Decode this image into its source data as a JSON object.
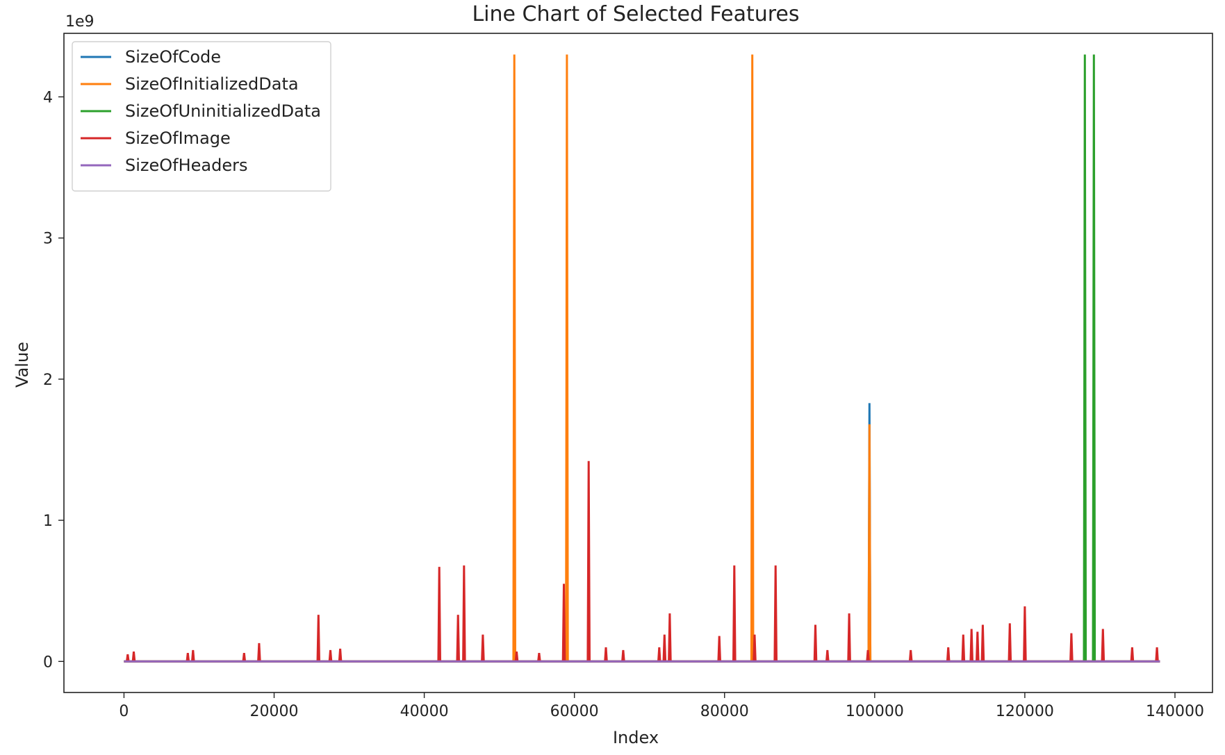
{
  "chart_data": {
    "type": "line",
    "title": "Line Chart of Selected Features",
    "xlabel": "Index",
    "ylabel": "Value",
    "y_scale_label": "1e9",
    "xlim": [
      -8000,
      145000
    ],
    "ylim": [
      -0.22,
      4.45
    ],
    "xticks": [
      0,
      20000,
      40000,
      60000,
      80000,
      100000,
      120000,
      140000
    ],
    "xtick_labels": [
      "0",
      "20000",
      "40000",
      "60000",
      "80000",
      "100000",
      "120000",
      "140000"
    ],
    "yticks": [
      0,
      1,
      2,
      3,
      4
    ],
    "ytick_labels": [
      "0",
      "1",
      "2",
      "3",
      "4"
    ],
    "grid": false,
    "legend_position": "top-left",
    "x_range": [
      0,
      138000
    ],
    "series": [
      {
        "name": "SizeOfCode",
        "color": "#1f77b4",
        "spikes": [
          [
            99300,
            1.83
          ],
          [
            99300,
            1.83
          ]
        ]
      },
      {
        "name": "SizeOfInitializedData",
        "color": "#ff7f0e",
        "spikes": [
          [
            52000,
            4.3
          ],
          [
            59000,
            4.3
          ],
          [
            83700,
            4.3
          ],
          [
            99300,
            1.68
          ]
        ]
      },
      {
        "name": "SizeOfUninitializedData",
        "color": "#2ca02c",
        "spikes": [
          [
            128000,
            4.3
          ],
          [
            129200,
            4.3
          ]
        ]
      },
      {
        "name": "SizeOfImage",
        "color": "#d62728",
        "spikes": [
          [
            500,
            0.05
          ],
          [
            1300,
            0.07
          ],
          [
            8500,
            0.06
          ],
          [
            9200,
            0.08
          ],
          [
            16000,
            0.06
          ],
          [
            18000,
            0.13
          ],
          [
            25900,
            0.33
          ],
          [
            27500,
            0.08
          ],
          [
            28800,
            0.09
          ],
          [
            42000,
            0.67
          ],
          [
            44500,
            0.33
          ],
          [
            45300,
            0.68
          ],
          [
            47800,
            0.19
          ],
          [
            52300,
            0.07
          ],
          [
            55300,
            0.06
          ],
          [
            58600,
            0.55
          ],
          [
            61900,
            1.42
          ],
          [
            64200,
            0.1
          ],
          [
            66500,
            0.08
          ],
          [
            71300,
            0.1
          ],
          [
            72000,
            0.19
          ],
          [
            72700,
            0.34
          ],
          [
            79300,
            0.18
          ],
          [
            81300,
            0.68
          ],
          [
            84000,
            0.19
          ],
          [
            86800,
            0.68
          ],
          [
            92100,
            0.26
          ],
          [
            93700,
            0.08
          ],
          [
            96600,
            0.34
          ],
          [
            99100,
            0.08
          ],
          [
            104800,
            0.08
          ],
          [
            109800,
            0.1
          ],
          [
            111800,
            0.19
          ],
          [
            112900,
            0.23
          ],
          [
            113700,
            0.21
          ],
          [
            114400,
            0.26
          ],
          [
            118000,
            0.27
          ],
          [
            120000,
            0.39
          ],
          [
            126200,
            0.2
          ],
          [
            130400,
            0.23
          ],
          [
            134300,
            0.1
          ],
          [
            137600,
            0.1
          ]
        ]
      },
      {
        "name": "SizeOfHeaders",
        "color": "#9467bd",
        "spikes": []
      }
    ]
  }
}
